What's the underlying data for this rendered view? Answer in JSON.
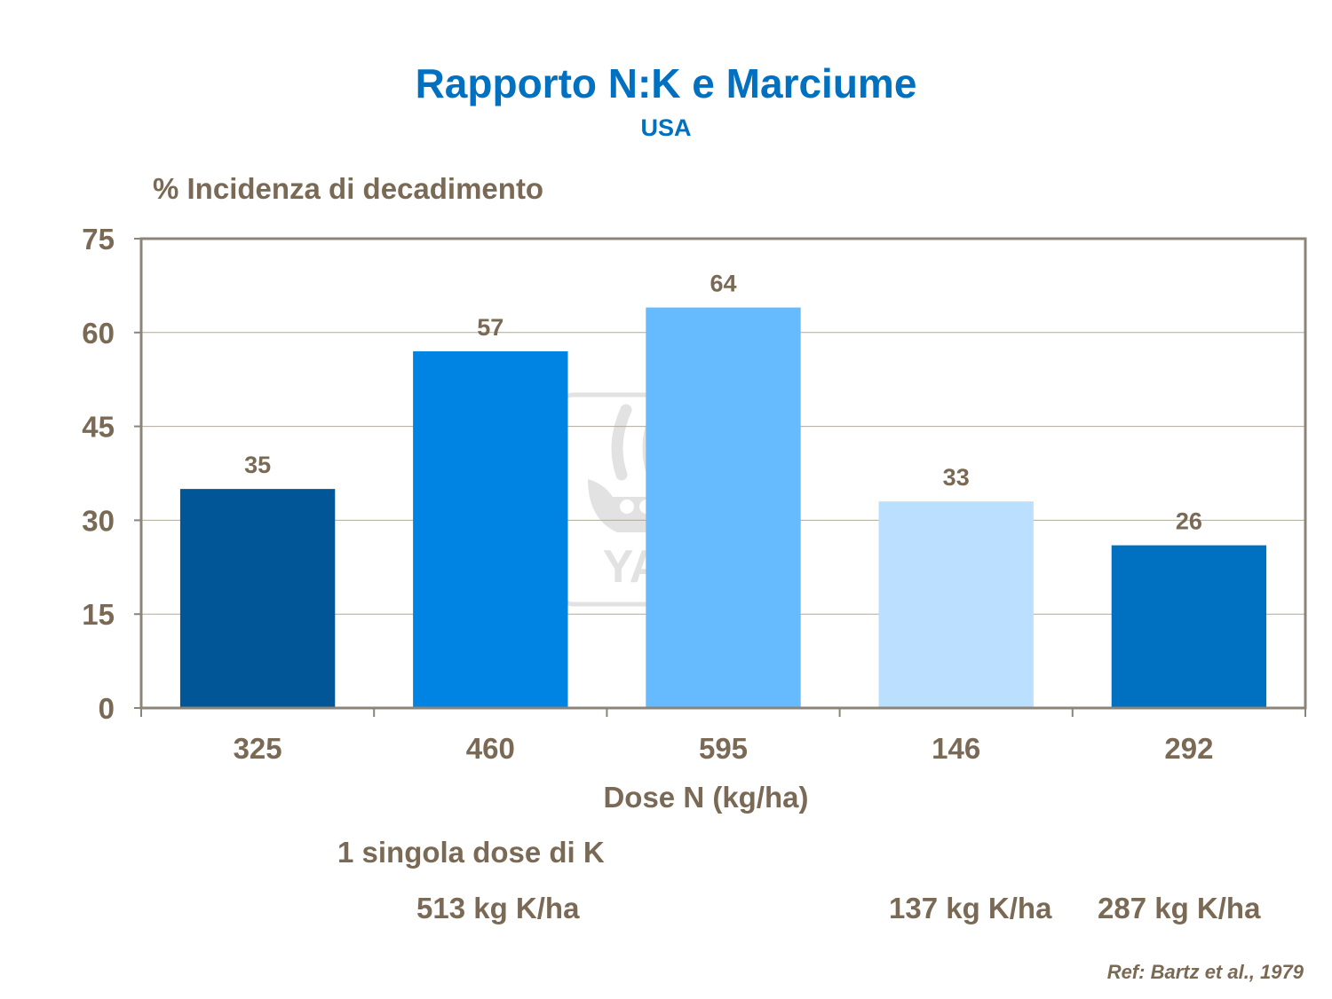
{
  "chart_data": {
    "type": "bar",
    "title": "Rapporto N:K e Marciume",
    "subtitle": "USA",
    "ylabel": "% Incidenza di decadimento",
    "xlabel": "Dose N (kg/ha)",
    "categories": [
      "325",
      "460",
      "595",
      "146",
      "292"
    ],
    "values": [
      35,
      57,
      64,
      33,
      26
    ],
    "bar_colors": [
      "#005696",
      "#0084E3",
      "#66BBFF",
      "#BBDFFF",
      "#0070C0"
    ],
    "ylim": [
      0,
      75
    ],
    "yticks": [
      "0",
      "15",
      "30",
      "45",
      "60",
      "75"
    ],
    "grid": true,
    "legend": "none"
  },
  "notes": {
    "single_dose": "1 singola dose di K",
    "k_513": "513 kg K/ha",
    "k_137": "137 kg K/ha",
    "k_287": "287 kg K/ha"
  },
  "reference": "Ref: Bartz et al.,  1979",
  "colors": {
    "title": "#0070C0",
    "text": "#7A6A55",
    "axis": "#8C8478",
    "grid": "#B0A89C",
    "watermark": "#D9D9D9"
  },
  "watermark_text": "YARA"
}
